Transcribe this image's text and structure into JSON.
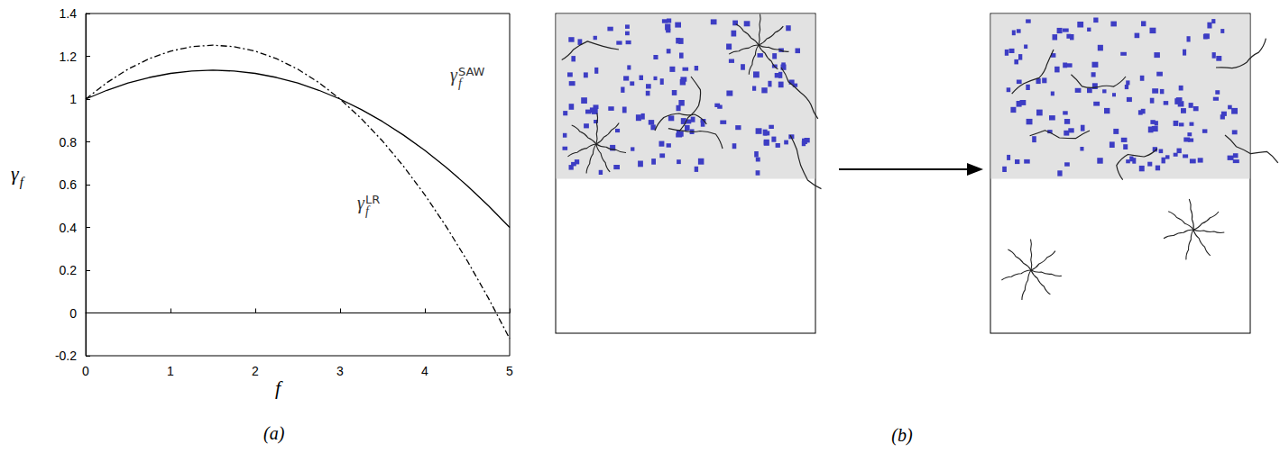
{
  "chart_data": {
    "type": "line",
    "panel_label": "(a)",
    "xlabel": {
      "base": "f"
    },
    "ylabel": {
      "base": "γ",
      "sub": "f"
    },
    "x": [
      0,
      0.25,
      0.5,
      0.75,
      1,
      1.25,
      1.5,
      1.75,
      2,
      2.25,
      2.5,
      2.75,
      3,
      3.25,
      3.5,
      3.75,
      4,
      4.25,
      4.5,
      4.75,
      5
    ],
    "series": [
      {
        "label": {
          "base": "γ",
          "sub": "f",
          "sup": "SAW"
        },
        "color": "#000000",
        "line_style": "solid",
        "values": [
          1,
          1.041,
          1.075,
          1.101,
          1.12,
          1.131,
          1.135,
          1.131,
          1.12,
          1.101,
          1.075,
          1.041,
          1,
          0.951,
          0.895,
          0.831,
          0.76,
          0.681,
          0.595,
          0.501,
          0.4
        ]
      },
      {
        "label": {
          "base": "γ",
          "sub": "f",
          "sup": "LR"
        },
        "color": "#000000",
        "line_style": "dashdot",
        "values": [
          1,
          1.077,
          1.14,
          1.189,
          1.224,
          1.245,
          1.252,
          1.245,
          1.224,
          1.189,
          1.14,
          1.077,
          1,
          0.909,
          0.804,
          0.685,
          0.552,
          0.405,
          0.244,
          0.069,
          -0.12
        ]
      }
    ],
    "xlim": [
      0,
      5
    ],
    "xticks": [
      0,
      1,
      2,
      3,
      4,
      5
    ],
    "ylim": [
      -0.2,
      1.4
    ],
    "yticks": [
      -0.2,
      0,
      0.2,
      0.4,
      0.6,
      0.8,
      1,
      1.2,
      1.4
    ],
    "grid": false
  },
  "diagram": {
    "panel_label": "(b)",
    "before": {
      "linear_chains_in_gel": 6,
      "stars_in_gel": 2,
      "stars_outside": 0
    },
    "after": {
      "linear_chains_in_gel": 6,
      "stars_in_gel": 0,
      "stars_outside": 2
    }
  }
}
